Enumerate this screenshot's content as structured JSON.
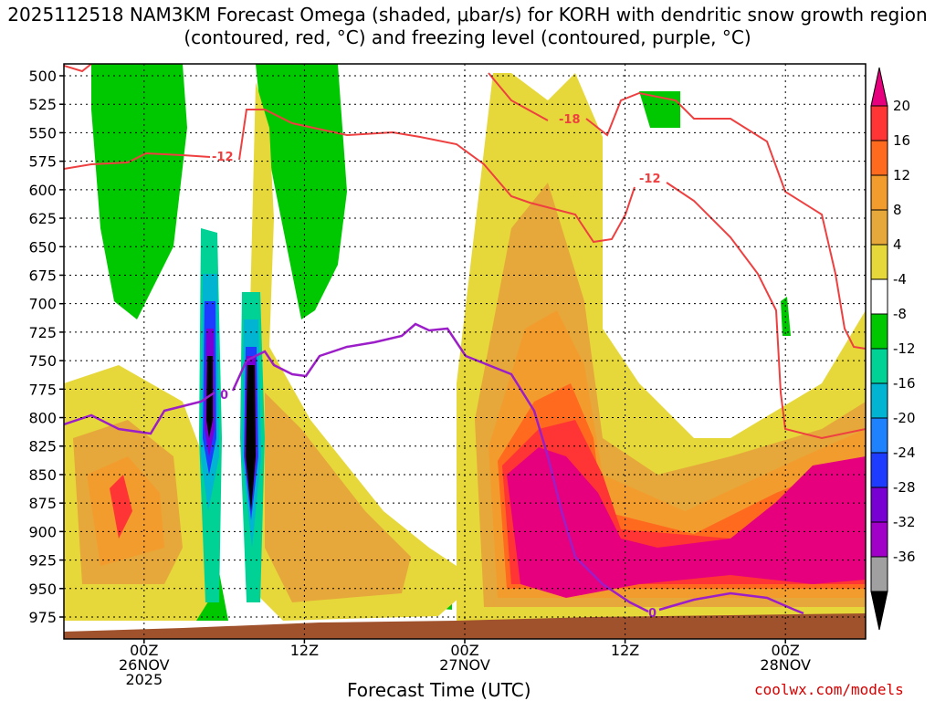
{
  "chart_data": {
    "type": "heatmap",
    "title": "2025112518 NAM3KM Forecast Omega (shaded, μbar/s) for KORH with dendritic snow growth region (contoured, red, °C) and freezing level (contoured, purple, °C)",
    "xlabel": "Forecast Time (UTC)",
    "credit": "coolwx.com/models",
    "y_ticks": [
      500,
      525,
      550,
      575,
      600,
      625,
      650,
      675,
      700,
      725,
      750,
      775,
      800,
      825,
      850,
      875,
      900,
      925,
      950,
      975
    ],
    "ylim": [
      975,
      500
    ],
    "x_ticks": [
      {
        "hour": 6,
        "label": "00Z",
        "sub1": "26NOV",
        "sub2": "2025"
      },
      {
        "hour": 18,
        "label": "12Z",
        "sub1": "",
        "sub2": ""
      },
      {
        "hour": 30,
        "label": "00Z",
        "sub1": "27NOV",
        "sub2": ""
      },
      {
        "hour": 42,
        "label": "12Z",
        "sub1": "",
        "sub2": ""
      },
      {
        "hour": 54,
        "label": "00Z",
        "sub1": "28NOV",
        "sub2": ""
      }
    ],
    "xlim": [
      0,
      60
    ],
    "grid": true,
    "colorbar": {
      "levels": [
        "20",
        "16",
        "12",
        "8",
        "4",
        "-4",
        "-8",
        "-12",
        "-16",
        "-20",
        "-24",
        "-28",
        "-32",
        "-36"
      ],
      "colors": [
        "#e6007e",
        "#ff3434",
        "#ff6a1e",
        "#f39c2e",
        "#e6a83a",
        "#e6d83a",
        "#ffffff",
        "#00c800",
        "#00d296",
        "#00b4d2",
        "#1e82ff",
        "#1e3cff",
        "#7800d2",
        "#a000c8",
        "#a0a0a0",
        "#000000"
      ]
    },
    "contour_labels": {
      "dendritic_a": "-12",
      "dendritic_b": "-18",
      "dendritic_c": "-12",
      "freezing_a": "0",
      "freezing_b": "0"
    },
    "colors": {
      "dendritic": "#ee4040",
      "freezing": "#9c1ec8",
      "ground": "#a0522d"
    }
  }
}
